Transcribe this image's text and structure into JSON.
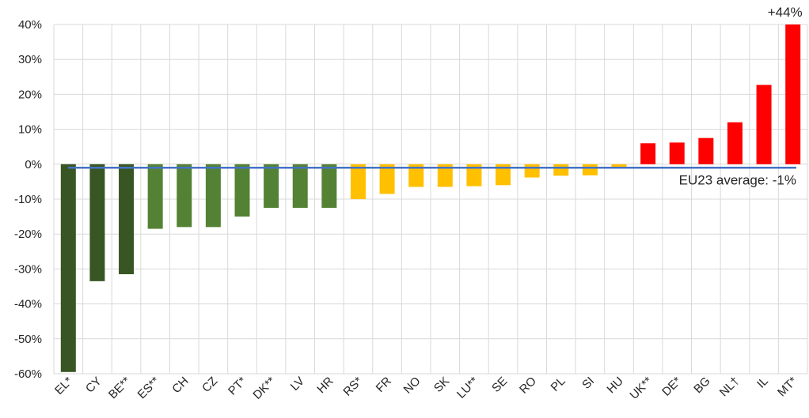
{
  "chart_data": {
    "type": "bar",
    "title": "",
    "xlabel": "",
    "ylabel": "",
    "ylim": [
      -60,
      40
    ],
    "yticks": [
      40,
      30,
      20,
      10,
      0,
      -10,
      -20,
      -30,
      -40,
      -50,
      -60
    ],
    "ytick_labels": [
      "40%",
      "30%",
      "20%",
      "10%",
      "0%",
      "-10%",
      "-20%",
      "-30%",
      "-40%",
      "-50%",
      "-60%"
    ],
    "grid": "vertical and horizontal",
    "categories": [
      "EL*",
      "CY",
      "BE**",
      "ES**",
      "CH",
      "CZ",
      "PT*",
      "DK**",
      "LV",
      "HR",
      "RS*",
      "FR",
      "NO",
      "SK",
      "LU**",
      "SE",
      "RO",
      "PL",
      "SI",
      "HU",
      "UK**",
      "DE*",
      "BG",
      "NL†",
      "IL",
      "MT*"
    ],
    "values": [
      -59.5,
      -33.5,
      -31.5,
      -18.5,
      -18,
      -18,
      -15,
      -12.5,
      -12.5,
      -12.5,
      -10,
      -8.5,
      -6.5,
      -6.5,
      -6.3,
      -6,
      -3.8,
      -3.3,
      -3.2,
      -1,
      6,
      6.2,
      7.5,
      12,
      22.7,
      44
    ],
    "colors": [
      "#375623",
      "#375623",
      "#375623",
      "#548235",
      "#548235",
      "#548235",
      "#548235",
      "#548235",
      "#548235",
      "#548235",
      "#FFC000",
      "#FFC000",
      "#FFC000",
      "#FFC000",
      "#FFC000",
      "#FFC000",
      "#FFC000",
      "#FFC000",
      "#FFC000",
      "#FFC000",
      "#FF0000",
      "#FF0000",
      "#FF0000",
      "#FF0000",
      "#FF0000",
      "#FF0000"
    ],
    "reference_line": {
      "value": -1,
      "label": "EU23 average: -1%",
      "color": "#4472C4"
    },
    "annotations": [
      {
        "category": "MT*",
        "text": "+44%"
      }
    ]
  }
}
